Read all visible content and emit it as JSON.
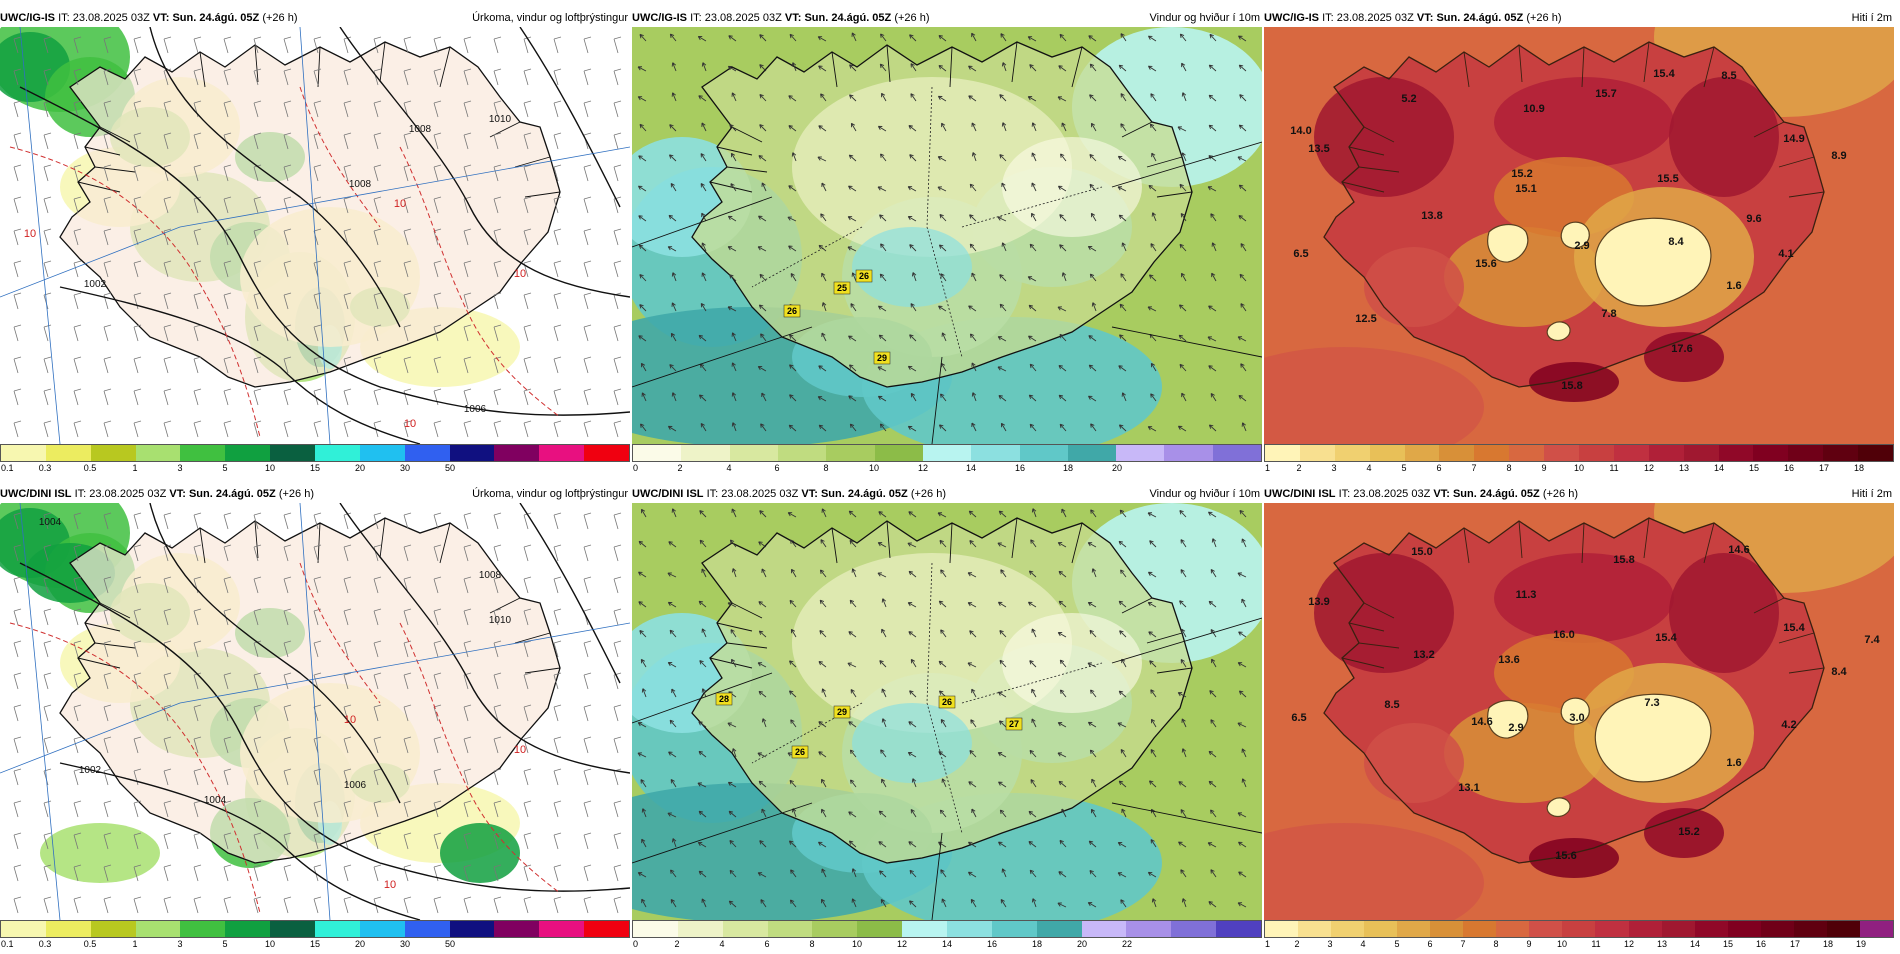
{
  "panels": [
    {
      "model": "UWC/IG-IS",
      "it_label": "IT:",
      "it": "23.08.2025 03Z",
      "vt_label": "VT:",
      "vt": "Sun. 24.ágú. 05Z",
      "lead": "(+26 h)",
      "title": "Úrkoma, vindur og loftþrýstingur",
      "type": "precip",
      "colorbar": {
        "colors": [
          "#f7f7b0",
          "#ecec60",
          "#b8c820",
          "#a8e070",
          "#40c040",
          "#10a040",
          "#0a6040",
          "#30f0d8",
          "#20c0f0",
          "#3060f0",
          "#101080",
          "#800060",
          "#e81080",
          "#f00010"
        ],
        "ticks": [
          "0.1",
          "0.3",
          "0.5",
          "1",
          "3",
          "5",
          "10",
          "15",
          "20",
          "30",
          "50"
        ]
      },
      "labels": [
        {
          "text": "1008",
          "kind": "isobar"
        },
        {
          "text": "1008",
          "kind": "isobar"
        },
        {
          "text": "1002",
          "kind": "isobar"
        },
        {
          "text": "1010",
          "kind": "isobar"
        },
        {
          "text": "1006",
          "kind": "isobar"
        },
        {
          "text": "10",
          "kind": "isotherm"
        },
        {
          "text": "10",
          "kind": "isotherm"
        },
        {
          "text": "10",
          "kind": "isotherm"
        },
        {
          "text": "10",
          "kind": "isotherm"
        }
      ]
    },
    {
      "model": "UWC/IG-IS",
      "it_label": "IT:",
      "it": "23.08.2025 03Z",
      "vt_label": "VT:",
      "vt": "Sun. 24.ágú. 05Z",
      "lead": "(+26 h)",
      "title": "Vindur og hviður í 10m",
      "type": "wind",
      "colorbar": {
        "colors": [
          "#fbfbe8",
          "#eef3c8",
          "#d8e8a0",
          "#c0dc80",
          "#a8cc60",
          "#8cbc48",
          "#b8f4f0",
          "#8ce0e0",
          "#60c8c8",
          "#40a8a8",
          "#c8b8f8",
          "#a890e8",
          "#8070d8"
        ],
        "ticks": [
          "0",
          "2",
          "4",
          "6",
          "8",
          "10",
          "12",
          "14",
          "16",
          "18",
          "20"
        ]
      },
      "labels": [
        {
          "text": "25",
          "kind": "gust"
        },
        {
          "text": "26",
          "kind": "gust"
        },
        {
          "text": "26",
          "kind": "gust"
        },
        {
          "text": "29",
          "kind": "gust"
        }
      ]
    },
    {
      "model": "UWC/IG-IS",
      "it_label": "IT:",
      "it": "23.08.2025 03Z",
      "vt_label": "VT:",
      "vt": "Sun. 24.ágú. 05Z",
      "lead": "(+26 h)",
      "title": "Hiti í 2m",
      "type": "temp",
      "colorbar": {
        "colors": [
          "#fff4b8",
          "#f8e090",
          "#f0d070",
          "#e8c058",
          "#e0a848",
          "#d89038",
          "#d87830",
          "#d86840",
          "#d05048",
          "#c84040",
          "#c03040",
          "#b02038",
          "#a01830",
          "#900828",
          "#800020",
          "#700018",
          "#600010",
          "#500008"
        ],
        "ticks": [
          "1",
          "2",
          "3",
          "4",
          "5",
          "6",
          "7",
          "8",
          "9",
          "10",
          "11",
          "12",
          "13",
          "14",
          "15",
          "16",
          "17",
          "18"
        ]
      },
      "labels": [
        {
          "text": "15.4"
        },
        {
          "text": "8.5"
        },
        {
          "text": "5.2"
        },
        {
          "text": "15.7"
        },
        {
          "text": "14.0"
        },
        {
          "text": "10.9"
        },
        {
          "text": "13.5"
        },
        {
          "text": "15.2"
        },
        {
          "text": "14.9"
        },
        {
          "text": "8.9"
        },
        {
          "text": "15.1"
        },
        {
          "text": "15.5"
        },
        {
          "text": "13.8"
        },
        {
          "text": "9.6"
        },
        {
          "text": "6.5"
        },
        {
          "text": "8.4"
        },
        {
          "text": "2.9"
        },
        {
          "text": "4.1"
        },
        {
          "text": "15.6"
        },
        {
          "text": "1.6"
        },
        {
          "text": "12.5"
        },
        {
          "text": "7.8"
        },
        {
          "text": "17.6"
        },
        {
          "text": "15.8"
        }
      ]
    },
    {
      "model": "UWC/DINI ISL",
      "it_label": "IT:",
      "it": "23.08.2025 03Z",
      "vt_label": "VT:",
      "vt": "Sun. 24.ágú. 05Z",
      "lead": "(+26 h)",
      "title": "Úrkoma, vindur og loftþrýstingur",
      "type": "precip",
      "colorbar": {
        "colors": [
          "#f7f7b0",
          "#ecec60",
          "#b8c820",
          "#a8e070",
          "#40c040",
          "#10a040",
          "#0a6040",
          "#30f0d8",
          "#20c0f0",
          "#3060f0",
          "#101080",
          "#800060",
          "#e81080",
          "#f00010"
        ],
        "ticks": [
          "0.1",
          "0.3",
          "0.5",
          "1",
          "3",
          "5",
          "10",
          "15",
          "20",
          "30",
          "50"
        ]
      },
      "labels": [
        {
          "text": "1004",
          "kind": "isobar"
        },
        {
          "text": "1008",
          "kind": "isobar"
        },
        {
          "text": "1010",
          "kind": "isobar"
        },
        {
          "text": "1002",
          "kind": "isobar"
        },
        {
          "text": "1004",
          "kind": "isobar"
        },
        {
          "text": "1006",
          "kind": "isobar"
        },
        {
          "text": "10",
          "kind": "isotherm"
        },
        {
          "text": "10",
          "kind": "isotherm"
        },
        {
          "text": "10",
          "kind": "isotherm"
        }
      ]
    },
    {
      "model": "UWC/DINI ISL",
      "it_label": "IT:",
      "it": "23.08.2025 03Z",
      "vt_label": "VT:",
      "vt": "Sun. 24.ágú. 05Z",
      "lead": "(+26 h)",
      "title": "Vindur og hviður í 10m",
      "type": "wind",
      "colorbar": {
        "colors": [
          "#fbfbe8",
          "#eef3c8",
          "#d8e8a0",
          "#c0dc80",
          "#a8cc60",
          "#8cbc48",
          "#b8f4f0",
          "#8ce0e0",
          "#60c8c8",
          "#40a8a8",
          "#c8b8f8",
          "#a890e8",
          "#8070d8",
          "#5040c0"
        ],
        "ticks": [
          "0",
          "2",
          "4",
          "6",
          "8",
          "10",
          "12",
          "14",
          "16",
          "18",
          "20",
          "22"
        ]
      },
      "labels": [
        {
          "text": "28",
          "kind": "gust"
        },
        {
          "text": "29",
          "kind": "gust"
        },
        {
          "text": "26",
          "kind": "gust"
        },
        {
          "text": "26",
          "kind": "gust"
        },
        {
          "text": "27",
          "kind": "gust"
        }
      ]
    },
    {
      "model": "UWC/DINI ISL",
      "it_label": "IT:",
      "it": "23.08.2025 03Z",
      "vt_label": "VT:",
      "vt": "Sun. 24.ágú. 05Z",
      "lead": "(+26 h)",
      "title": "Hiti í 2m",
      "type": "temp",
      "colorbar": {
        "colors": [
          "#fff4b8",
          "#f8e090",
          "#f0d070",
          "#e8c058",
          "#e0a848",
          "#d89038",
          "#d87830",
          "#d86840",
          "#d05048",
          "#c84040",
          "#c03040",
          "#b02038",
          "#a01830",
          "#900828",
          "#800020",
          "#700018",
          "#600010",
          "#500008",
          "#902080"
        ],
        "ticks": [
          "1",
          "2",
          "3",
          "4",
          "5",
          "6",
          "7",
          "8",
          "9",
          "10",
          "11",
          "12",
          "13",
          "14",
          "15",
          "16",
          "17",
          "18",
          "19"
        ]
      },
      "labels": [
        {
          "text": "15.0"
        },
        {
          "text": "15.8"
        },
        {
          "text": "14.6"
        },
        {
          "text": "11.3"
        },
        {
          "text": "13.9"
        },
        {
          "text": "16.0"
        },
        {
          "text": "15.4"
        },
        {
          "text": "7.4"
        },
        {
          "text": "13.2"
        },
        {
          "text": "13.6"
        },
        {
          "text": "15.4"
        },
        {
          "text": "8.4"
        },
        {
          "text": "8.5"
        },
        {
          "text": "7.3"
        },
        {
          "text": "6.5"
        },
        {
          "text": "14.6"
        },
        {
          "text": "2.9"
        },
        {
          "text": "3.0"
        },
        {
          "text": "4.2"
        },
        {
          "text": "1.6"
        },
        {
          "text": "13.1"
        },
        {
          "text": "15.2"
        },
        {
          "text": "15.6"
        }
      ]
    }
  ]
}
